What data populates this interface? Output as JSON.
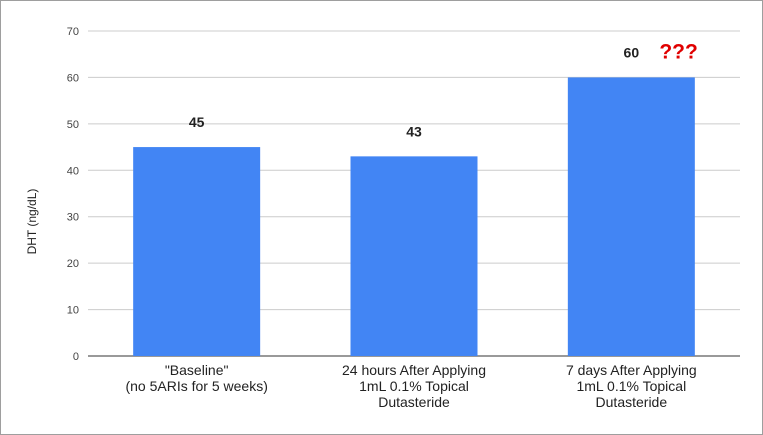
{
  "chart_data": {
    "type": "bar",
    "title": "",
    "xlabel": "",
    "ylabel": "DHT (ng/dL)",
    "ylim": [
      0,
      70
    ],
    "yticks": [
      0,
      10,
      20,
      30,
      40,
      50,
      60,
      70
    ],
    "grid": true,
    "legend": "none",
    "bar_color": "#4285f4",
    "categories": [
      [
        "\"Baseline\"",
        "(no 5ARIs for 5 weeks)"
      ],
      [
        "24 hours After Applying",
        "1mL 0.1% Topical",
        "Dutasteride"
      ],
      [
        "7 days After Applying",
        "1mL 0.1% Topical",
        "Dutasteride"
      ]
    ],
    "values": [
      45,
      43,
      60
    ],
    "annotations": [
      {
        "category_index": 2,
        "text": "???",
        "color": "#e00000"
      }
    ]
  }
}
